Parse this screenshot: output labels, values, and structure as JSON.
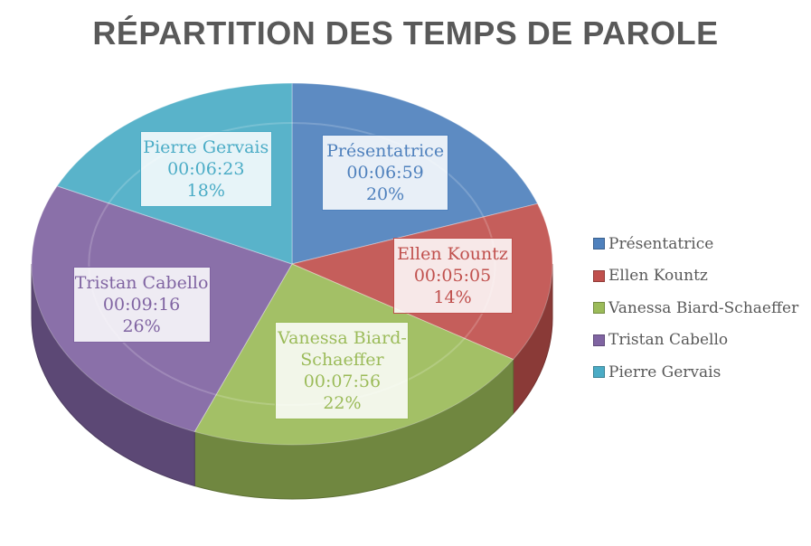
{
  "chart_data": {
    "type": "pie",
    "title": "RÉPARTITION DES TEMPS DE PAROLE",
    "slices": [
      {
        "name": "Présentatrice",
        "time": "00:06:59",
        "percent": "20%",
        "value": 419,
        "color": "#4F81BD"
      },
      {
        "name": "Ellen Kountz",
        "time": "00:05:05",
        "percent": "14%",
        "value": 305,
        "color": "#C0504D"
      },
      {
        "name": "Vanessa Biard-Schaeffer",
        "time": "00:07:56",
        "percent": "22%",
        "value": 476,
        "color": "#9BBB59"
      },
      {
        "name": "Tristan Cabello",
        "time": "00:09:16",
        "percent": "26%",
        "value": 556,
        "color": "#8064A2"
      },
      {
        "name": "Pierre Gervais",
        "time": "00:06:23",
        "percent": "18%",
        "value": 383,
        "color": "#4BACC6"
      }
    ],
    "label_names": [
      "Présentatrice",
      "Ellen Kountz",
      "Vanessa Biard-\nSchaeffer",
      "Tristan Cabello",
      "Pierre Gervais"
    ],
    "legend_position": "right"
  }
}
